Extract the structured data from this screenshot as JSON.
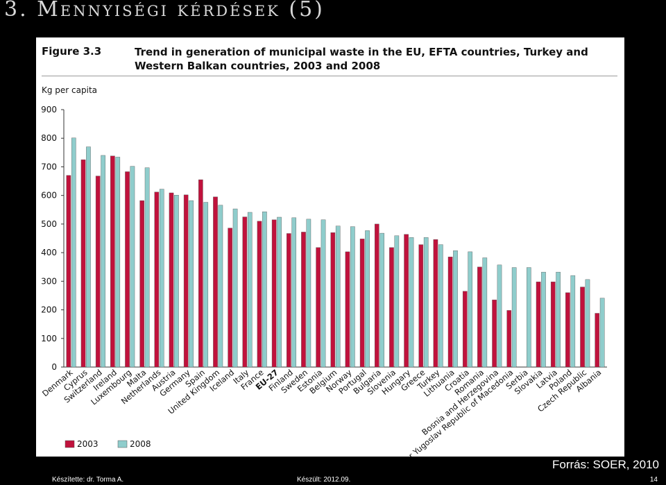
{
  "slide": {
    "title": "3. Mennyiségi kérdések (5)",
    "source": "Forrás: SOER, 2010",
    "footer_author": "Készítette: dr. Torma A.",
    "footer_date": "Készült: 2012.09.",
    "page_number": "14"
  },
  "figure": {
    "label": "Figure 3.3",
    "caption": "Trend in generation of municipal waste in the EU, EFTA countries, Turkey and Western Balkan countries, 2003 and 2008"
  },
  "chart_data": {
    "type": "bar",
    "ylabel": "Kg per capita",
    "xlabel": "",
    "ylim": [
      0,
      900
    ],
    "yticks": [
      0,
      100,
      200,
      300,
      400,
      500,
      600,
      700,
      800,
      900
    ],
    "grid": false,
    "legend_position": "bottom-left",
    "categories": [
      "Denmark",
      "Cyprus",
      "Switzerland",
      "Ireland",
      "Luxembourg",
      "Malta",
      "Netherlands",
      "Austria",
      "Germany",
      "Spain",
      "United Kingdom",
      "Iceland",
      "Italy",
      "France",
      "EU-27",
      "Finland",
      "Sweden",
      "Estonia",
      "Belgium",
      "Norway",
      "Portugal",
      "Bulgaria",
      "Slovenia",
      "Hungary",
      "Greece",
      "Turkey",
      "Lithuania",
      "Croatia",
      "Romania",
      "Bosnia and Herzegovina",
      "Former Yugoslav Republic of Macedonia",
      "Serbia",
      "Slovakia",
      "Latvia",
      "Poland",
      "Czech Republic",
      "Albania"
    ],
    "highlight_category": "EU-27",
    "series": [
      {
        "name": "2003",
        "color": "#c0123c",
        "values": [
          670,
          725,
          668,
          738,
          683,
          582,
          612,
          609,
          602,
          655,
          595,
          486,
          525,
          510,
          515,
          467,
          472,
          418,
          470,
          403,
          448,
          500,
          418,
          464,
          428,
          446,
          385,
          265,
          350,
          235,
          198,
          null,
          298,
          298,
          260,
          280,
          188
        ]
      },
      {
        "name": "2008",
        "color": "#8fcdcc",
        "values": [
          801,
          770,
          740,
          734,
          702,
          697,
          622,
          601,
          582,
          576,
          566,
          553,
          541,
          543,
          524,
          522,
          517,
          515,
          493,
          491,
          477,
          468,
          459,
          453,
          453,
          428,
          407,
          403,
          382,
          357,
          348,
          348,
          332,
          332,
          320,
          306,
          241
        ]
      }
    ]
  }
}
